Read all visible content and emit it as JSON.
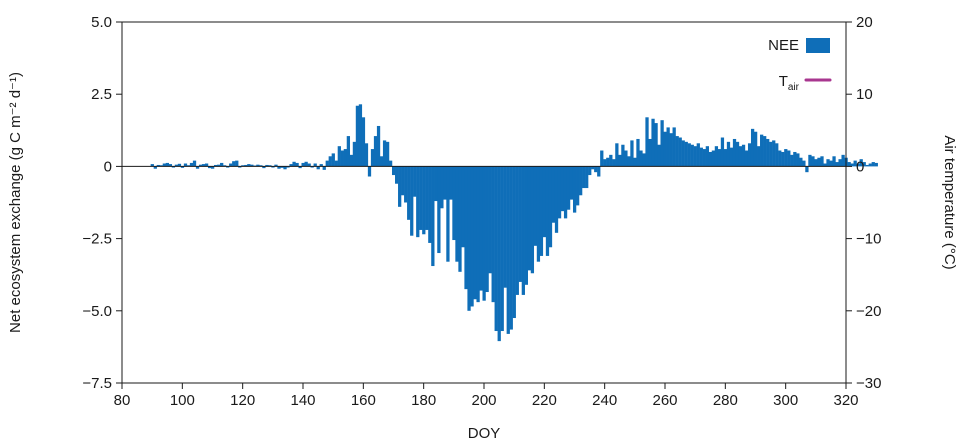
{
  "chart_data": {
    "type": "bar",
    "xlabel": "DOY",
    "ylabel": "Net ecosystem exchange (g C m⁻² d⁻¹)",
    "y2label": "Air temperature (°C)",
    "xlim": [
      80,
      320
    ],
    "ylim": [
      -7.5,
      5.0
    ],
    "y2lim": [
      -30,
      20
    ],
    "x_ticks": [
      "80",
      "100",
      "120",
      "140",
      "160",
      "180",
      "200",
      "220",
      "240",
      "260",
      "280",
      "300",
      "320"
    ],
    "y_ticks": [
      "5.0",
      "2.5",
      "0",
      "−2.5",
      "−5.0",
      "−7.5"
    ],
    "y2_ticks": [
      "20",
      "10",
      "0",
      "−10",
      "−20",
      "−30"
    ],
    "legend_position": "top-right",
    "colors": {
      "nee": "#0f6eb8",
      "tair": "#a8368f"
    },
    "series": [
      {
        "name": "NEE",
        "axis": "left",
        "start_doy": 90,
        "step": 1,
        "values": [
          0.08,
          -0.08,
          0.05,
          0.04,
          0.1,
          0.12,
          0.08,
          -0.04,
          0.06,
          0.09,
          -0.05,
          0.1,
          0.04,
          0.12,
          0.2,
          -0.08,
          0.06,
          0.08,
          0.1,
          -0.06,
          -0.08,
          0.05,
          0.06,
          0.12,
          0.04,
          -0.04,
          0.1,
          0.18,
          0.2,
          -0.04,
          0.04,
          0.05,
          0.08,
          0.06,
          0.03,
          0.06,
          0.04,
          -0.06,
          0.05,
          0.04,
          -0.04,
          0.06,
          -0.08,
          -0.05,
          -0.1,
          -0.04,
          0.08,
          0.16,
          0.12,
          -0.06,
          0.12,
          0.16,
          0.1,
          -0.04,
          0.1,
          -0.1,
          0.08,
          -0.12,
          0.2,
          0.35,
          0.45,
          0.2,
          0.7,
          0.55,
          0.6,
          1.05,
          0.4,
          0.85,
          2.1,
          2.15,
          1.7,
          0.8,
          -0.35,
          0.6,
          1.05,
          1.4,
          0.35,
          0.9,
          0.85,
          0.2,
          -0.3,
          -0.6,
          -1.4,
          -1.0,
          -1.25,
          -1.85,
          -2.4,
          -1.05,
          -2.45,
          -2.2,
          -2.35,
          -2.2,
          -2.65,
          -3.45,
          -1.2,
          -3.0,
          -1.45,
          -1.15,
          -3.3,
          -1.15,
          -2.55,
          -3.3,
          -3.65,
          -2.8,
          -4.25,
          -5.0,
          -4.85,
          -4.6,
          -4.7,
          -4.3,
          -4.65,
          -4.35,
          -3.7,
          -4.7,
          -5.7,
          -6.05,
          -5.7,
          -4.2,
          -5.8,
          -5.65,
          -5.25,
          -4.45,
          -4.0,
          -4.45,
          -4.1,
          -3.6,
          -3.7,
          -2.75,
          -3.3,
          -3.1,
          -2.45,
          -3.1,
          -2.8,
          -1.95,
          -2.3,
          -1.8,
          -1.55,
          -1.8,
          -1.5,
          -1.15,
          -1.6,
          -1.35,
          -1.0,
          -0.75,
          -0.75,
          -0.3,
          -0.1,
          -0.2,
          -0.35,
          0.55,
          0.25,
          0.3,
          0.4,
          0.25,
          0.8,
          0.4,
          0.75,
          0.55,
          0.35,
          0.9,
          0.3,
          0.95,
          0.55,
          0.45,
          1.7,
          0.95,
          1.65,
          1.5,
          0.75,
          1.6,
          1.2,
          1.35,
          1.15,
          1.35,
          1.05,
          1.0,
          0.9,
          0.85,
          0.8,
          0.75,
          0.7,
          0.8,
          0.65,
          0.6,
          0.7,
          0.5,
          0.55,
          0.7,
          0.6,
          1.0,
          0.6,
          0.85,
          0.65,
          0.95,
          0.85,
          0.7,
          0.75,
          0.55,
          0.8,
          1.3,
          1.2,
          0.7,
          1.1,
          1.05,
          0.95,
          0.85,
          0.9,
          0.8,
          0.55,
          0.5,
          0.6,
          0.55,
          0.4,
          0.5,
          0.45,
          0.3,
          0.2,
          -0.2,
          0.4,
          0.35,
          0.25,
          0.3,
          0.35,
          0.1,
          0.25,
          0.2,
          0.35,
          0.15,
          0.25,
          0.4,
          0.3,
          0.15,
          0.1,
          0.2,
          0.1,
          0.25,
          0.15,
          0.05,
          0.1,
          0.15,
          0.12
        ]
      },
      {
        "name": "T",
        "subscript": "air",
        "axis": "right",
        "values": []
      }
    ]
  }
}
